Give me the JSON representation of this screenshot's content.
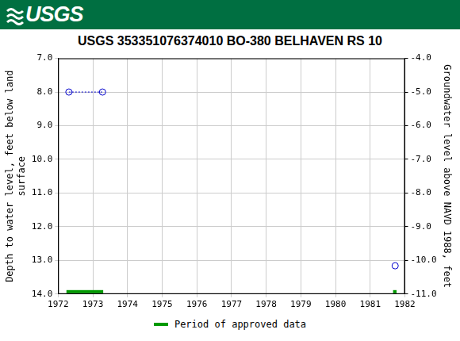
{
  "header": {
    "logo": "USGS"
  },
  "chart_data": {
    "type": "line",
    "title": "USGS 353351076374010 BO-380 BELHAVEN RS 10",
    "y_label": "Depth to water level, feet below land surface",
    "y2_label": "Groundwater level above NAVD 1988, feet",
    "series": [
      {
        "x": [
          1972.31,
          1973.28
        ],
        "values": [
          8.0,
          8.0
        ],
        "color": "#0000cc",
        "marker": "circle",
        "line_style": "dotted"
      },
      {
        "x": [
          1981.72
        ],
        "values": [
          13.16
        ],
        "color": "#0000cc",
        "marker": "circle",
        "line_style": "dotted"
      }
    ],
    "approved_periods": {
      "name": "Period of approved data",
      "color": "#009900",
      "ranges": [
        [
          1972.24,
          1973.3
        ],
        [
          1981.66,
          1981.76
        ]
      ]
    },
    "xlim": [
      1972,
      1982
    ],
    "xticks": [
      1972,
      1973,
      1974,
      1975,
      1976,
      1977,
      1978,
      1979,
      1980,
      1981,
      1982
    ],
    "ylim": [
      14.0,
      7.0
    ],
    "yticks": [
      {
        "value": 7,
        "label": "7.0"
      },
      {
        "value": 8,
        "label": "8.0"
      },
      {
        "value": 9,
        "label": "9.0"
      },
      {
        "value": 10,
        "label": "10.0"
      },
      {
        "value": 11,
        "label": "11.0"
      },
      {
        "value": 12,
        "label": "12.0"
      },
      {
        "value": 13,
        "label": "13.0"
      },
      {
        "value": 14,
        "label": "14.0"
      }
    ],
    "y2lim": [
      -11.0,
      -4.0
    ],
    "y2ticks": [
      {
        "value": -4,
        "label": "-4.0"
      },
      {
        "value": -5,
        "label": "-5.0"
      },
      {
        "value": -6,
        "label": "-6.0"
      },
      {
        "value": -7,
        "label": "-7.0"
      },
      {
        "value": -8,
        "label": "-8.0"
      },
      {
        "value": -9,
        "label": "-9.0"
      },
      {
        "value": -10,
        "label": "-10.0"
      },
      {
        "value": -11,
        "label": "-11.0"
      }
    ],
    "grid": true,
    "legend": "bottom"
  }
}
